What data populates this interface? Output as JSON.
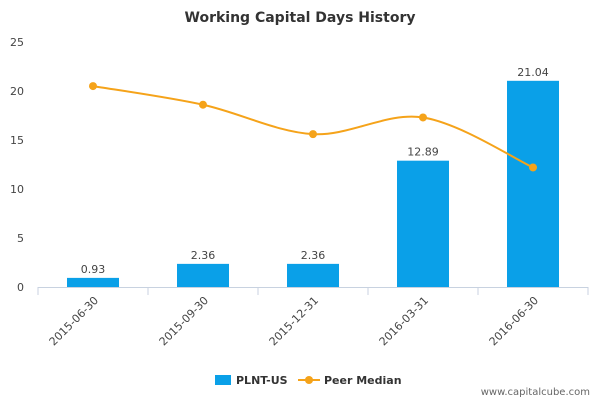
{
  "chart_data": {
    "type": "bar",
    "title": "Working Capital Days History",
    "categories": [
      "2015-06-30",
      "2015-09-30",
      "2015-12-31",
      "2016-03-31",
      "2016-06-30"
    ],
    "series": [
      {
        "name": "PLNT-US",
        "type": "bar",
        "values": [
          0.93,
          2.36,
          2.36,
          12.89,
          21.04
        ],
        "labels": [
          "0.93",
          "2.36",
          "2.36",
          "12.89",
          "21.04"
        ],
        "color": "#0aa0e8"
      },
      {
        "name": "Peer Median",
        "type": "line",
        "values": [
          20.5,
          18.6,
          15.6,
          17.3,
          12.2
        ],
        "color": "#f5a31a"
      }
    ],
    "ylim": [
      0,
      25
    ],
    "yticks": [
      0,
      5,
      10,
      15,
      20,
      25
    ],
    "grid": false,
    "legend_position": "bottom-center"
  },
  "footer": {
    "source": "www.capitalcube.com"
  }
}
